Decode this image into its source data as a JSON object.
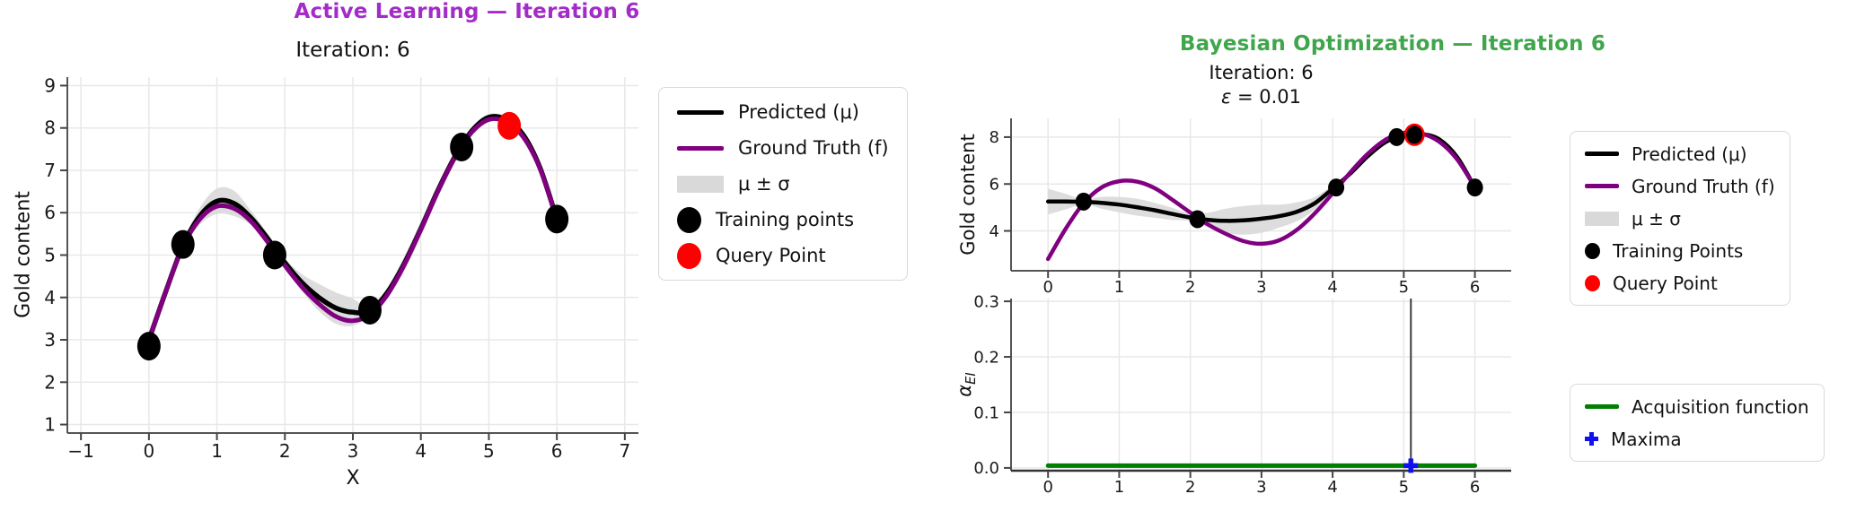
{
  "figure": {
    "left_suptitle": "Active Learning — Iteration 6",
    "left_title_color": "#A32CC8",
    "right_suptitle": "Bayesian Optimization — Iteration 6",
    "right_title_color": "#3FA64C",
    "background": "#ffffff"
  },
  "chart_data": [
    {
      "id": "active-learning",
      "type": "line",
      "title": "Iteration: 6",
      "xlabel": "X",
      "ylabel": "Gold content",
      "xlim": [
        -1.2,
        7.2
      ],
      "ylim": [
        0.8,
        9.2
      ],
      "xticks": [
        -1,
        0,
        1,
        2,
        3,
        4,
        5,
        6,
        7
      ],
      "xtick_labels": [
        "−1",
        "0",
        "1",
        "2",
        "3",
        "4",
        "5",
        "6",
        "7"
      ],
      "yticks": [
        1,
        2,
        3,
        4,
        5,
        6,
        7,
        8,
        9
      ],
      "grid": true,
      "x": [
        0,
        0.25,
        0.5,
        0.75,
        1,
        1.25,
        1.5,
        1.75,
        2,
        2.25,
        2.5,
        2.75,
        3,
        3.25,
        3.5,
        3.75,
        4,
        4.25,
        4.5,
        4.75,
        5,
        5.25,
        5.5,
        5.75,
        6
      ],
      "band": {
        "label": "μ ± σ",
        "color": "#D9D9D9",
        "hi": [
          3.08,
          4.23,
          5.3,
          6.12,
          6.57,
          6.52,
          6.05,
          5.5,
          4.92,
          4.55,
          4.32,
          4.12,
          3.97,
          3.78,
          4.22,
          4.95,
          5.8,
          6.68,
          7.45,
          8.02,
          8.33,
          8.27,
          7.93,
          7.15,
          5.93
        ],
        "lo": [
          2.92,
          4.07,
          5.14,
          5.72,
          5.97,
          5.92,
          5.71,
          5.26,
          4.72,
          4.15,
          3.68,
          3.38,
          3.33,
          3.58,
          3.98,
          4.61,
          5.44,
          6.36,
          7.19,
          7.84,
          8.17,
          8.13,
          7.77,
          6.99,
          5.77
        ]
      },
      "series": [
        {
          "name": "Predicted (μ)",
          "color": "#000000",
          "y": [
            3.0,
            4.15,
            5.22,
            5.92,
            6.27,
            6.22,
            5.88,
            5.38,
            4.82,
            4.35,
            4.0,
            3.75,
            3.65,
            3.68,
            4.1,
            4.78,
            5.62,
            6.52,
            7.32,
            7.93,
            8.25,
            8.2,
            7.85,
            7.07,
            5.85
          ]
        },
        {
          "name": "Ground Truth (f)",
          "color": "#800080",
          "y": [
            3.0,
            4.15,
            5.2,
            5.85,
            6.15,
            6.1,
            5.8,
            5.3,
            4.75,
            4.25,
            3.85,
            3.55,
            3.45,
            3.6,
            4.05,
            4.75,
            5.6,
            6.5,
            7.3,
            7.9,
            8.2,
            8.15,
            7.8,
            7.05,
            5.85
          ]
        }
      ],
      "points": [
        {
          "name": "Training points",
          "color": "#000000",
          "xy": [
            [
              0,
              2.85
            ],
            [
              0.5,
              5.25
            ],
            [
              1.85,
              5.0
            ],
            [
              3.25,
              3.7
            ],
            [
              4.6,
              7.55
            ],
            [
              6.0,
              5.85
            ]
          ]
        },
        {
          "name": "Query Point",
          "color": "#FF0000",
          "xy": [
            [
              5.3,
              8.05
            ]
          ]
        }
      ],
      "legend": [
        {
          "swatch": "line",
          "color": "#000000",
          "label": "Predicted (μ)"
        },
        {
          "swatch": "line",
          "color": "#800080",
          "label": "Ground Truth (f)"
        },
        {
          "swatch": "patch",
          "color": "#D9D9D9",
          "label": "μ ± σ"
        },
        {
          "swatch": "dot",
          "color": "#000000",
          "label": "Training points"
        },
        {
          "swatch": "dot",
          "color": "#FF0000",
          "label": "Query Point"
        }
      ]
    },
    {
      "id": "bo-surrogate",
      "type": "line",
      "title": "Iteration: 6",
      "subtitle_symbol": "ε",
      "subtitle_rest": " = 0.01",
      "ylabel": "Gold content",
      "xlim": [
        -0.52,
        6.51
      ],
      "ylim": [
        2.3,
        8.8
      ],
      "xticks": [
        0,
        1,
        2,
        3,
        4,
        5,
        6
      ],
      "yticks": [
        4,
        6,
        8
      ],
      "grid": true,
      "x": [
        0,
        0.25,
        0.5,
        0.75,
        1,
        1.25,
        1.5,
        1.75,
        2,
        2.25,
        2.5,
        2.75,
        3,
        3.25,
        3.5,
        3.75,
        4,
        4.25,
        4.5,
        4.75,
        5,
        5.25,
        5.5,
        5.75,
        6
      ],
      "band": {
        "label": "μ ± σ",
        "color": "#D9D9D9",
        "hi": [
          5.8,
          5.58,
          5.35,
          5.45,
          5.45,
          5.37,
          5.2,
          4.98,
          4.72,
          4.78,
          4.95,
          5.06,
          5.12,
          5.12,
          5.22,
          5.45,
          5.95,
          6.55,
          7.28,
          7.85,
          8.12,
          8.17,
          7.98,
          7.25,
          5.93
        ],
        "lo": [
          4.7,
          4.92,
          5.13,
          4.95,
          4.79,
          4.65,
          4.56,
          4.46,
          4.42,
          4.16,
          3.91,
          3.84,
          3.92,
          4.14,
          4.42,
          4.91,
          5.65,
          6.35,
          7.12,
          7.75,
          8.04,
          8.09,
          7.82,
          7.05,
          5.77
        ]
      },
      "series": [
        {
          "name": "Predicted (μ)",
          "color": "#000000",
          "y": [
            5.25,
            5.25,
            5.24,
            5.2,
            5.12,
            5.01,
            4.88,
            4.72,
            4.57,
            4.47,
            4.43,
            4.45,
            4.52,
            4.63,
            4.82,
            5.18,
            5.8,
            6.45,
            7.2,
            7.8,
            8.08,
            8.13,
            7.9,
            7.15,
            5.85
          ]
        },
        {
          "name": "Ground Truth (f)",
          "color": "#800080",
          "y": [
            2.8,
            4.1,
            5.18,
            5.85,
            6.12,
            6.1,
            5.82,
            5.32,
            4.78,
            4.27,
            3.87,
            3.56,
            3.45,
            3.6,
            4.05,
            4.75,
            5.6,
            6.5,
            7.3,
            7.9,
            8.18,
            8.15,
            7.8,
            7.05,
            5.85
          ]
        }
      ],
      "points": [
        {
          "name": "Query Point",
          "color": "#FF0000",
          "xy": [
            [
              5.15,
              8.1
            ]
          ]
        },
        {
          "name": "Training Points",
          "color": "#000000",
          "xy": [
            [
              0.5,
              5.25
            ],
            [
              2.1,
              4.5
            ],
            [
              4.05,
              5.85
            ],
            [
              4.9,
              8.0
            ],
            [
              5.15,
              8.1
            ],
            [
              6.0,
              5.85
            ]
          ]
        }
      ],
      "legend": [
        {
          "swatch": "line",
          "color": "#000000",
          "label": "Predicted (μ)"
        },
        {
          "swatch": "line",
          "color": "#800080",
          "label": "Ground Truth (f)"
        },
        {
          "swatch": "patch",
          "color": "#D9D9D9",
          "label": "μ ± σ"
        },
        {
          "swatch": "dot",
          "color": "#000000",
          "label": "Training Points"
        },
        {
          "swatch": "dot",
          "color": "#FF0000",
          "label": "Query Point"
        }
      ]
    },
    {
      "id": "bo-acquisition",
      "type": "line",
      "ylabel_main": "α",
      "ylabel_sub": "EI",
      "xlim": [
        -0.52,
        6.51
      ],
      "ylim": [
        -0.005,
        0.305
      ],
      "xticks": [
        0,
        1,
        2,
        3,
        4,
        5,
        6
      ],
      "yticks": [
        0,
        0.1,
        0.2,
        0.3
      ],
      "ytick_labels": [
        "0.0",
        "0.1",
        "0.2",
        "0.3"
      ],
      "grid": true,
      "x": [
        0,
        6
      ],
      "series": [
        {
          "name": "Acquisition function",
          "color": "#007F00",
          "y": [
            0.004,
            0.004
          ]
        }
      ],
      "vline": {
        "x": 5.1,
        "color": "#3C3C3C"
      },
      "points": [
        {
          "name": "Maxima",
          "color": "#1111EE",
          "marker": "plus",
          "xy": [
            [
              5.1,
              0.004
            ]
          ]
        }
      ],
      "legend": [
        {
          "swatch": "line",
          "color": "#007F00",
          "label": "Acquisition function"
        },
        {
          "swatch": "plus",
          "color": "#1111EE",
          "label": "Maxima"
        }
      ]
    }
  ]
}
